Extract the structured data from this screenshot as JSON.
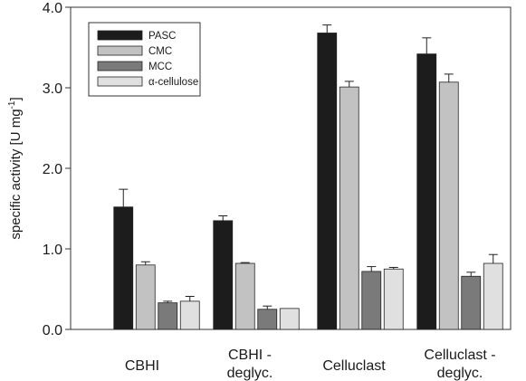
{
  "chart_data": {
    "type": "bar",
    "title": "",
    "ylabel": "specific activity [U mg",
    "ylabel_sup": "-1",
    "ylabel_end": "]",
    "ylim": [
      0,
      4
    ],
    "yticks": [
      {
        "value": 0,
        "label": "0.0"
      },
      {
        "value": 1,
        "label": "1.0"
      },
      {
        "value": 2,
        "label": "2.0"
      },
      {
        "value": 3,
        "label": "3.0"
      },
      {
        "value": 4,
        "label": "4.0"
      }
    ],
    "categories": [
      {
        "lines": [
          "CBHI"
        ]
      },
      {
        "lines": [
          "CBHI -",
          "deglyc."
        ]
      },
      {
        "lines": [
          "Celluclast"
        ]
      },
      {
        "lines": [
          "Celluclast -",
          "deglyc."
        ]
      }
    ],
    "legend_position": "top-left",
    "series": [
      {
        "name": "PASC",
        "color": "#1c1c1c",
        "values": [
          1.52,
          1.35,
          3.68,
          3.42
        ],
        "errors": [
          0.22,
          0.06,
          0.1,
          0.2
        ]
      },
      {
        "name": "CMC",
        "color": "#c2c2c2",
        "values": [
          0.8,
          0.82,
          3.01,
          3.07
        ],
        "errors": [
          0.04,
          0.01,
          0.07,
          0.1
        ]
      },
      {
        "name": "MCC",
        "color": "#7a7a7a",
        "values": [
          0.33,
          0.25,
          0.72,
          0.66
        ],
        "errors": [
          0.02,
          0.04,
          0.06,
          0.05
        ]
      },
      {
        "name": "α-cellulose",
        "color": "#e0e0e0",
        "values": [
          0.35,
          0.26,
          0.75,
          0.82
        ],
        "errors": [
          0.06,
          0.0,
          0.02,
          0.11
        ]
      }
    ]
  }
}
